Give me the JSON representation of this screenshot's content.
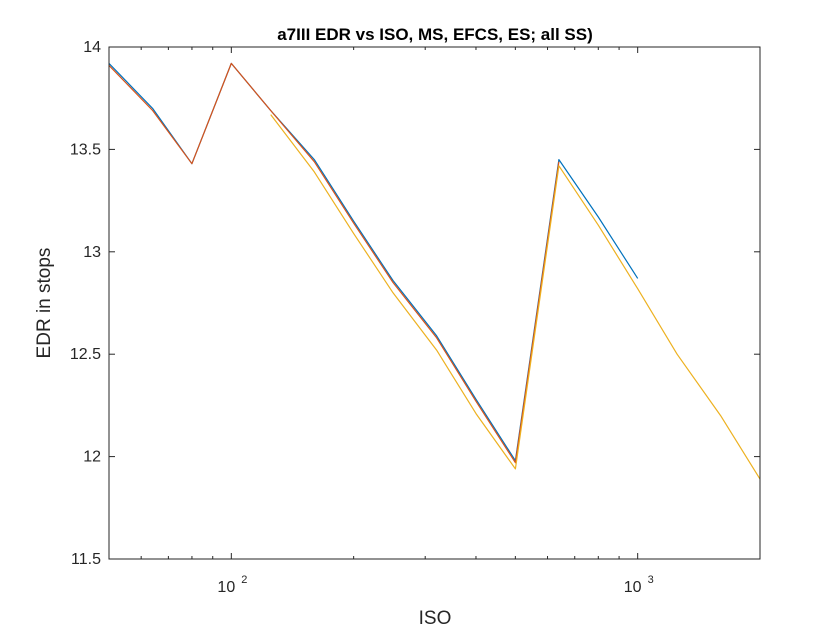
{
  "chart_data": {
    "type": "line",
    "title": "a7III EDR vs ISO, MS, EFCS, ES; all SS)",
    "xlabel": "ISO",
    "ylabel": "EDR in stops",
    "xscale": "log",
    "xlim": [
      50,
      2000
    ],
    "ylim": [
      11.5,
      14
    ],
    "grid": false,
    "legend": "none",
    "yticks": [
      11.5,
      12,
      12.5,
      13,
      13.5,
      14
    ],
    "yticklabels": [
      "11.5",
      "12",
      "12.5",
      "13",
      "13.5",
      "14"
    ],
    "xticks": [
      {
        "value": 100,
        "base": "10",
        "exp": "2"
      },
      {
        "value": 1000,
        "base": "10",
        "exp": "3"
      }
    ],
    "series": [
      {
        "color": "#0072BD",
        "x": [
          50,
          64,
          80,
          100,
          125,
          160,
          200,
          250,
          320,
          400,
          500,
          640,
          800,
          1000
        ],
        "y": [
          13.92,
          13.7,
          13.43,
          13.92,
          13.69,
          13.45,
          13.15,
          12.86,
          12.59,
          12.28,
          11.98,
          13.45,
          13.17,
          12.87
        ]
      },
      {
        "color": "#D95319",
        "x": [
          50,
          64,
          80,
          100,
          125,
          160,
          200,
          250,
          320,
          400,
          500,
          640
        ],
        "y": [
          13.91,
          13.69,
          13.43,
          13.92,
          13.69,
          13.44,
          13.14,
          12.85,
          12.58,
          12.27,
          11.97,
          13.44
        ]
      },
      {
        "color": "#EDB120",
        "x": [
          125,
          160,
          200,
          250,
          320,
          400,
          500,
          640,
          800,
          1000,
          1250,
          1600,
          2000
        ],
        "y": [
          13.67,
          13.39,
          13.09,
          12.8,
          12.52,
          12.21,
          11.94,
          13.42,
          13.13,
          12.82,
          12.5,
          12.2,
          11.89
        ]
      }
    ]
  }
}
